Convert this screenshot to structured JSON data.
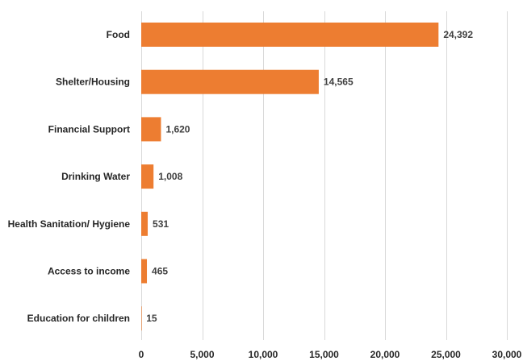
{
  "chart_data": {
    "type": "bar",
    "orientation": "horizontal",
    "categories": [
      "Food",
      "Shelter/Housing",
      "Financial Support",
      "Drinking Water",
      "Health Sanitation/ Hygiene",
      "Access to income",
      "Education for children"
    ],
    "values": [
      24392,
      14565,
      1620,
      1008,
      531,
      465,
      15
    ],
    "value_labels": [
      "24,392",
      "14,565",
      "1,620",
      "1,008",
      "531",
      "465",
      "15"
    ],
    "xlim": [
      0,
      30000
    ],
    "xticks": [
      0,
      5000,
      10000,
      15000,
      20000,
      25000,
      30000
    ],
    "xtick_labels": [
      "0",
      "5,000",
      "10,000",
      "15,000",
      "20,000",
      "25,000",
      "30,000"
    ],
    "grid": true,
    "bar_color": "#ed7d31",
    "title": "",
    "xlabel": "",
    "ylabel": ""
  }
}
